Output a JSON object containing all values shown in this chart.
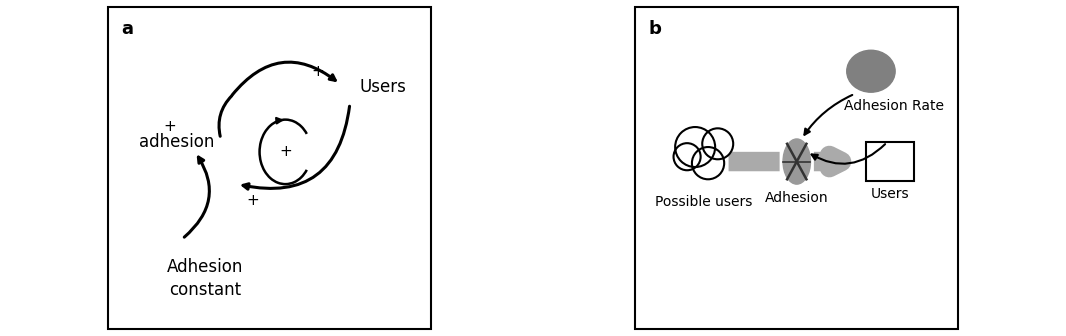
{
  "panel_a_label": "a",
  "panel_b_label": "b",
  "bg_color": "#ffffff",
  "border_color": "#000000",
  "arrow_color": "#000000",
  "gray_fill": "#888888",
  "gray_pipe": "#999999",
  "nodes": {
    "users": "Users",
    "adhesion": "adhesion",
    "adhesion_constant": "Adhesion\nconstant",
    "adhesion_rate": "Adhesion Rate",
    "possible_users": "Possible users",
    "adhesion_b": "Adhesion",
    "users_b": "Users"
  },
  "font_size_label": 13,
  "font_size_node_a": 12,
  "font_size_node_b": 10,
  "font_size_plus": 11,
  "lw_arrow": 2.2,
  "lw_border": 1.5
}
